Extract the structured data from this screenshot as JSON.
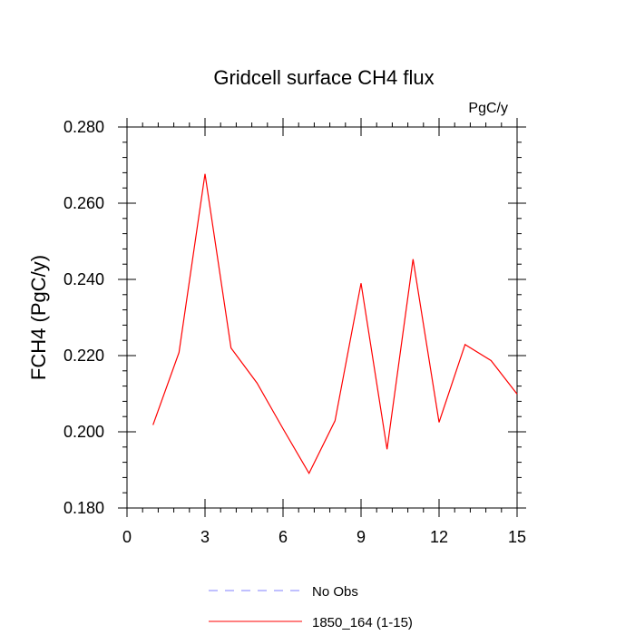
{
  "chart_data": {
    "type": "line",
    "title": "Gridcell surface CH4 flux",
    "units_label": "PgC/y",
    "ylabel": "FCH4  (PgC/y)",
    "xlabel": "",
    "xlim": [
      0,
      15
    ],
    "ylim": [
      0.18,
      0.28
    ],
    "x_ticks": [
      0,
      3,
      6,
      9,
      12,
      15
    ],
    "x_tick_labels": [
      "0",
      "3",
      "6",
      "9",
      "12",
      "15"
    ],
    "y_ticks": [
      0.18,
      0.2,
      0.22,
      0.24,
      0.26,
      0.28
    ],
    "y_tick_labels": [
      "0.180",
      "0.200",
      "0.220",
      "0.240",
      "0.260",
      "0.280"
    ],
    "grid": false,
    "legend_position": "bottom",
    "series": [
      {
        "name": "No Obs",
        "color": "#8080ff",
        "dash": "dashed",
        "x": [],
        "y": []
      },
      {
        "name": "1850_164 (1-15)",
        "color": "#ff0000",
        "dash": "solid",
        "x": [
          1,
          2,
          3,
          4,
          5,
          6,
          7,
          8,
          9,
          10,
          11,
          12,
          13,
          14,
          15
        ],
        "y": [
          0.2018,
          0.2208,
          0.2677,
          0.222,
          0.2128,
          0.2008,
          0.1891,
          0.2029,
          0.239,
          0.1954,
          0.2453,
          0.2025,
          0.2229,
          0.2187,
          0.2099
        ]
      }
    ]
  }
}
